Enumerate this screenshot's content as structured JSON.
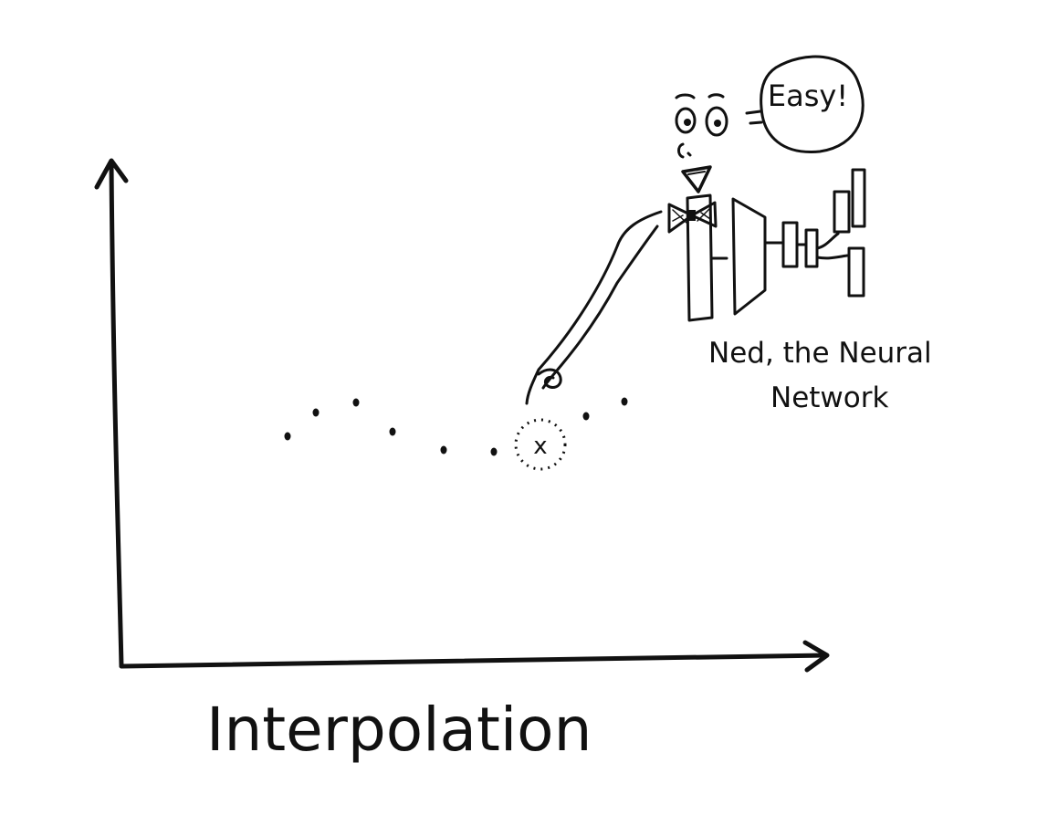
{
  "title": "Interpolation",
  "speech_bubble": {
    "text": "Easy!"
  },
  "character_label": {
    "line1": "Ned, the Neural",
    "line2": "Network"
  },
  "query_marker": {
    "text": "x"
  },
  "colors": {
    "ink": "#111111",
    "background": "#ffffff"
  }
}
